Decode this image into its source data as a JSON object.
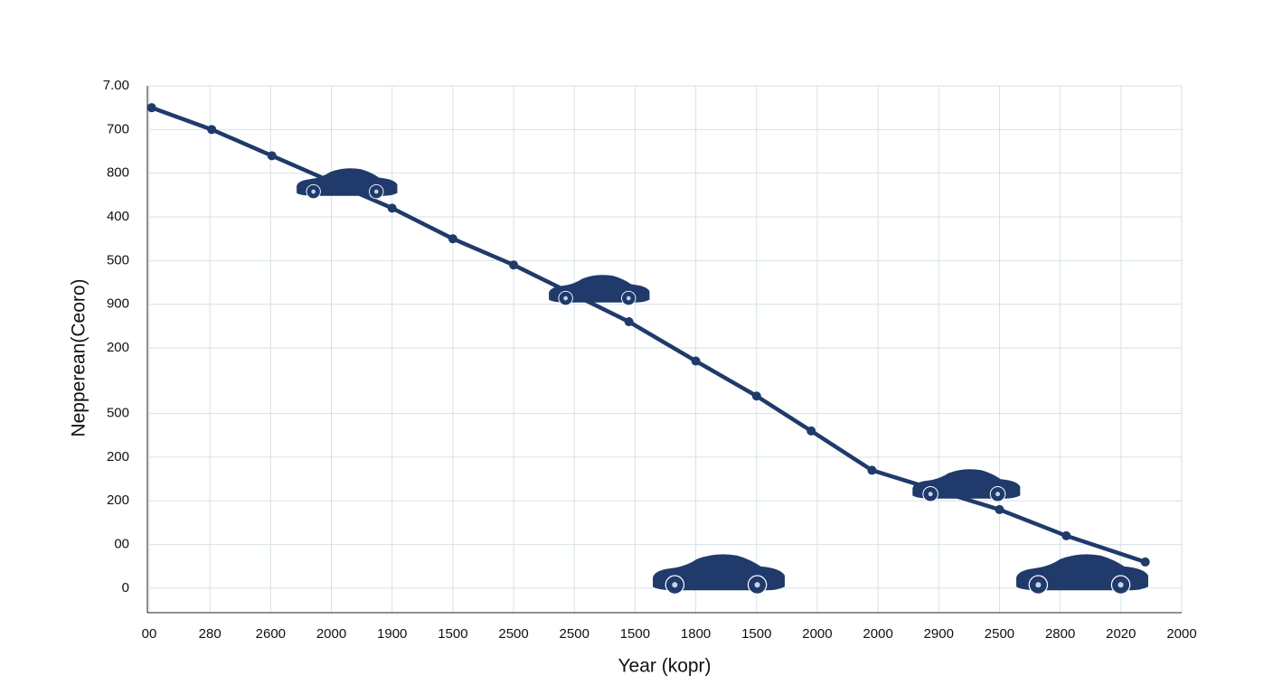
{
  "chart_data": {
    "type": "line",
    "xlabel": "Year (kopr)",
    "ylabel": "Nepperean(Ceoro)",
    "xlim": [
      0,
      17
    ],
    "ylim": [
      -0.56,
      11.5
    ],
    "xticks": [
      {
        "value": 0,
        "label": "00"
      },
      {
        "value": 1,
        "label": "280"
      },
      {
        "value": 2,
        "label": "2600"
      },
      {
        "value": 3,
        "label": "2000"
      },
      {
        "value": 4,
        "label": "1900"
      },
      {
        "value": 5,
        "label": "1500"
      },
      {
        "value": 6,
        "label": "2500"
      },
      {
        "value": 7,
        "label": "2500"
      },
      {
        "value": 8,
        "label": "1500"
      },
      {
        "value": 9,
        "label": "1800"
      },
      {
        "value": 10,
        "label": "1500"
      },
      {
        "value": 11,
        "label": "2000"
      },
      {
        "value": 12,
        "label": "2000"
      },
      {
        "value": 13,
        "label": "2900"
      },
      {
        "value": 14,
        "label": "2500"
      },
      {
        "value": 15,
        "label": "2800"
      },
      {
        "value": 16,
        "label": "2020"
      },
      {
        "value": 17,
        "label": "2000"
      }
    ],
    "yticks": [
      0,
      {
        "value": 1,
        "label": "00"
      },
      {
        "value": 2,
        "label": "200"
      },
      {
        "value": 3,
        "label": "200"
      },
      {
        "value": 4,
        "label": "500"
      },
      {
        "value": 5.5,
        "label": "200"
      },
      {
        "value": 6.5,
        "label": "900"
      },
      {
        "value": 7.5,
        "label": "500"
      },
      {
        "value": 8.5,
        "label": "400"
      },
      {
        "value": 9.5,
        "label": "800"
      },
      {
        "value": 10.5,
        "label": "700"
      },
      {
        "value": 11.5,
        "label": "7.00"
      }
    ],
    "grid": true,
    "series": [
      {
        "color": "#1f3a6b",
        "x": [
          0.04,
          1.03,
          2.02,
          4.0,
          5.0,
          6.0,
          7.9,
          9.0,
          10.0,
          10.9,
          11.9,
          14.0,
          15.1,
          16.4
        ],
        "values": [
          11.0,
          10.5,
          9.9,
          8.7,
          8.0,
          7.4,
          6.1,
          5.2,
          4.4,
          3.6,
          2.7,
          1.8,
          1.2,
          0.6
        ]
      }
    ]
  }
}
